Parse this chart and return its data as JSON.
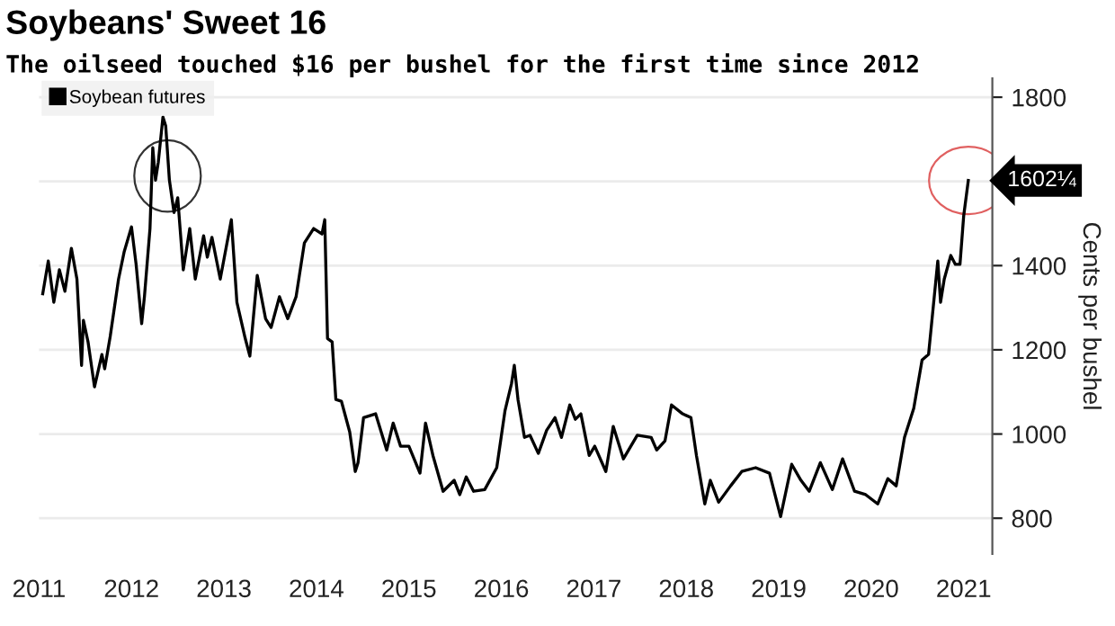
{
  "chart_data": {
    "type": "line",
    "title": "Soybeans' Sweet 16",
    "subtitle": "The oilseed touched $16 per bushel for the first time since 2012",
    "ylabel": "Cents per bushel",
    "x": [
      2011.04,
      2011.1,
      2011.16,
      2011.22,
      2011.28,
      2011.35,
      2011.41,
      2011.46,
      2011.48,
      2011.53,
      2011.6,
      2011.68,
      2011.71,
      2011.77,
      2011.86,
      2011.92,
      2012.0,
      2012.05,
      2012.11,
      2012.14,
      2012.2,
      2012.23,
      2012.26,
      2012.29,
      2012.34,
      2012.37,
      2012.41,
      2012.46,
      2012.5,
      2012.56,
      2012.63,
      2012.69,
      2012.78,
      2012.82,
      2012.87,
      2012.96,
      2013.08,
      2013.14,
      2013.23,
      2013.28,
      2013.36,
      2013.45,
      2013.51,
      2013.6,
      2013.69,
      2013.78,
      2013.87,
      2013.97,
      2014.06,
      2014.09,
      2014.12,
      2014.17,
      2014.21,
      2014.27,
      2014.36,
      2014.42,
      2014.45,
      2014.51,
      2014.64,
      2014.76,
      2014.83,
      2014.91,
      2015.0,
      2015.12,
      2015.18,
      2015.26,
      2015.37,
      2015.49,
      2015.55,
      2015.62,
      2015.7,
      2015.82,
      2015.95,
      2016.04,
      2016.11,
      2016.14,
      2016.18,
      2016.25,
      2016.31,
      2016.4,
      2016.49,
      2016.58,
      2016.65,
      2016.74,
      2016.8,
      2016.86,
      2016.95,
      2017.01,
      2017.13,
      2017.21,
      2017.32,
      2017.47,
      2017.62,
      2017.68,
      2017.77,
      2017.84,
      2017.96,
      2018.05,
      2018.11,
      2018.2,
      2018.26,
      2018.35,
      2018.48,
      2018.6,
      2018.75,
      2018.9,
      2019.02,
      2019.14,
      2019.24,
      2019.33,
      2019.45,
      2019.58,
      2019.69,
      2019.82,
      2019.94,
      2020.07,
      2020.18,
      2020.27,
      2020.36,
      2020.46,
      2020.55,
      2020.62,
      2020.72,
      2020.75,
      2020.79,
      2020.86,
      2020.91,
      2020.96,
      2021.0,
      2021.05
    ],
    "series": [
      {
        "name": "Soybean futures",
        "color": "#000000",
        "values": [
          1333,
          1411,
          1313,
          1390,
          1339,
          1441,
          1368,
          1163,
          1270,
          1219,
          1112,
          1189,
          1155,
          1232,
          1368,
          1432,
          1492,
          1403,
          1262,
          1326,
          1488,
          1680,
          1603,
          1646,
          1753,
          1732,
          1603,
          1526,
          1561,
          1390,
          1488,
          1368,
          1471,
          1420,
          1467,
          1368,
          1509,
          1313,
          1227,
          1185,
          1377,
          1274,
          1253,
          1326,
          1274,
          1326,
          1454,
          1488,
          1475,
          1509,
          1227,
          1219,
          1082,
          1078,
          1005,
          911,
          932,
          1039,
          1048,
          962,
          1026,
          971,
          971,
          907,
          1026,
          949,
          864,
          890,
          856,
          898,
          864,
          868,
          920,
          1056,
          1120,
          1163,
          1082,
          992,
          997,
          954,
          1009,
          1039,
          992,
          1069,
          1035,
          1048,
          949,
          971,
          911,
          1018,
          941,
          997,
          992,
          962,
          984,
          1069,
          1048,
          1039,
          949,
          834,
          890,
          838,
          877,
          911,
          920,
          907,
          804,
          928,
          890,
          864,
          932,
          868,
          941,
          864,
          856,
          834,
          894,
          877,
          992,
          1061,
          1176,
          1189,
          1411,
          1313,
          1368,
          1424,
          1403,
          1403,
          1518,
          1602.25
        ]
      }
    ],
    "xlim": [
      2011.0,
      2021.31
    ],
    "xticks": [
      2011,
      2012,
      2013,
      2014,
      2015,
      2016,
      2017,
      2018,
      2019,
      2020,
      2021
    ],
    "ylim": [
      715,
      1845
    ],
    "yticks": [
      800,
      1000,
      1200,
      1400,
      {
        "value": 1600,
        "label": null
      },
      1800
    ],
    "grid": "y",
    "legend": "top left",
    "line_style": "solid",
    "marker": "none",
    "annotations": [
      {
        "text": "1602¼",
        "x": 2021.05,
        "y": 1602.25
      }
    ]
  }
}
